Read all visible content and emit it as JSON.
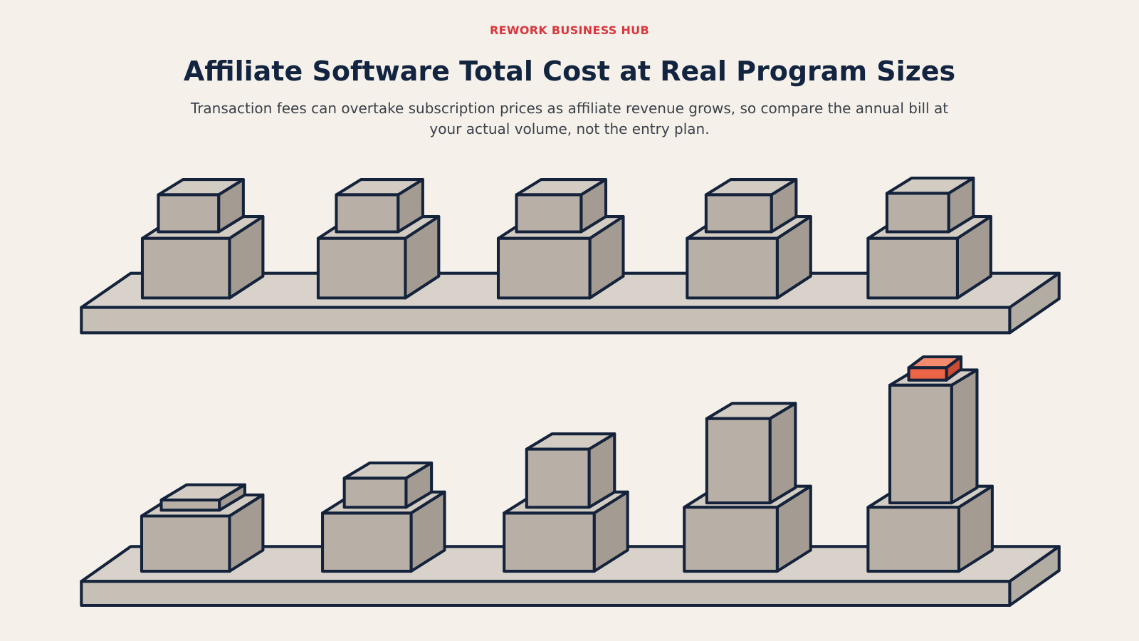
{
  "header": {
    "brand": "REWORK BUSINESS HUB",
    "title": "Affiliate Software Total Cost at Real Program Sizes",
    "subtitle": "Transaction fees can overtake subscription prices as affiliate revenue grows, so compare the annual bill at your actual volume, not the entry plan."
  }
}
